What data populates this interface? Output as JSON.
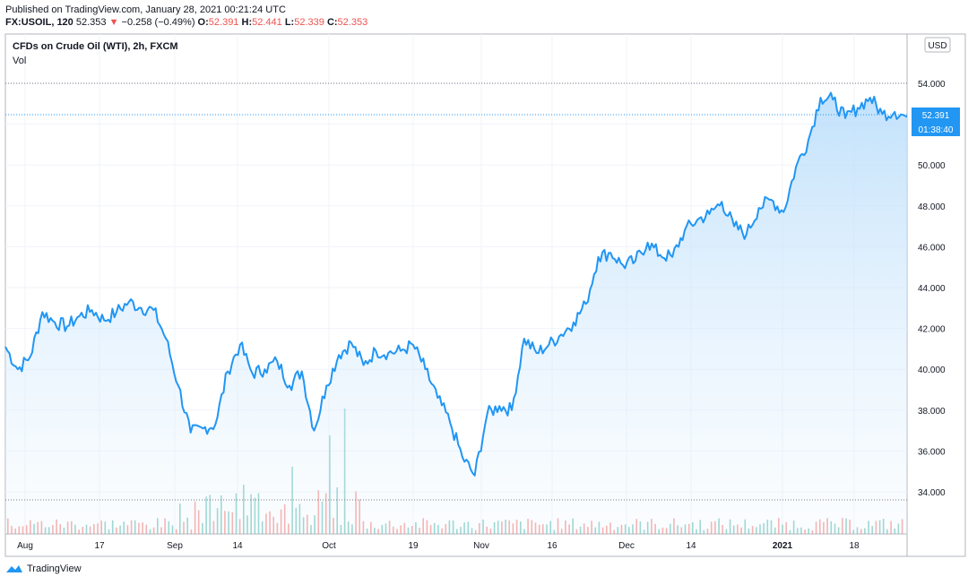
{
  "header": {
    "published": "Published on TradingView.com, January 28, 2021 00:21:24 UTC",
    "symbol": "FX:USOIL, 120",
    "last": "52.353",
    "change": "−0.258 (−0.49%)",
    "o_label": "O:",
    "o_value": "52.391",
    "h_label": "H:",
    "h_value": "52.441",
    "l_label": "L:",
    "l_value": "52.339",
    "c_label": "C:",
    "c_value": "52.353"
  },
  "legend": {
    "title": "CFDs on Crude Oil (WTI), 2h, FXCM",
    "vol": "Vol"
  },
  "currency_badge": "USD",
  "price_badge": {
    "value": "52.391",
    "countdown": "01:38:40"
  },
  "brand": "TradingView",
  "colors": {
    "line": "#2196f3",
    "fill_top": "#bbdefb",
    "vol_up": "#26a69a",
    "vol_down": "#ef5350",
    "grid": "#f0f3fa",
    "badge": "#2196f3"
  },
  "chart_data": {
    "type": "area",
    "x_ticks": [
      "Aug",
      "17",
      "Sep",
      "14",
      "Oct",
      "19",
      "Nov",
      "16",
      "Dec",
      "14",
      "2021",
      "18"
    ],
    "y_ticks": [
      "34.000",
      "36.000",
      "38.000",
      "40.000",
      "42.000",
      "44.000",
      "46.000",
      "48.000",
      "50.000",
      "52.000",
      "54.000"
    ],
    "ylim": [
      33.5,
      56.0
    ],
    "x": [
      "Aug 3",
      "Aug 5",
      "Aug 7",
      "Aug 10",
      "Aug 12",
      "Aug 14",
      "Aug 17",
      "Aug 19",
      "Aug 21",
      "Aug 24",
      "Aug 26",
      "Aug 28",
      "Sep 1",
      "Sep 3",
      "Sep 7",
      "Sep 9",
      "Sep 11",
      "Sep 14",
      "Sep 16",
      "Sep 18",
      "Sep 21",
      "Sep 23",
      "Sep 25",
      "Sep 28",
      "Sep 30",
      "Oct 2",
      "Oct 5",
      "Oct 7",
      "Oct 9",
      "Oct 12",
      "Oct 14",
      "Oct 16",
      "Oct 19",
      "Oct 21",
      "Oct 23",
      "Oct 26",
      "Oct 28",
      "Oct 30",
      "Nov 2",
      "Nov 4",
      "Nov 6",
      "Nov 9",
      "Nov 11",
      "Nov 13",
      "Nov 16",
      "Nov 18",
      "Nov 20",
      "Nov 23",
      "Nov 25",
      "Nov 27",
      "Nov 30",
      "Dec 2",
      "Dec 4",
      "Dec 7",
      "Dec 9",
      "Dec 11",
      "Dec 14",
      "Dec 16",
      "Dec 18",
      "Dec 21",
      "Dec 23",
      "Dec 28",
      "Dec 30",
      "Jan 4",
      "Jan 6",
      "Jan 8",
      "Jan 11",
      "Jan 13",
      "Jan 15",
      "Jan 18",
      "Jan 20",
      "Jan 22",
      "Jan 25",
      "Jan 27"
    ],
    "close": [
      41.1,
      40.0,
      40.6,
      42.8,
      42.3,
      42.1,
      42.6,
      42.9,
      42.4,
      42.8,
      43.3,
      43.0,
      42.9,
      41.5,
      39.2,
      36.9,
      37.1,
      37.3,
      39.9,
      41.2,
      39.8,
      40.0,
      40.4,
      39.2,
      39.9,
      37.0,
      39.2,
      40.7,
      41.3,
      40.2,
      40.9,
      40.8,
      40.9,
      41.2,
      40.0,
      38.6,
      37.4,
      35.7,
      34.8,
      37.8,
      38.2,
      38.0,
      41.5,
      40.8,
      41.2,
      41.7,
      42.3,
      43.2,
      45.5,
      45.7,
      45.1,
      45.3,
      46.2,
      45.6,
      45.5,
      46.8,
      47.3,
      47.6,
      48.2,
      47.0,
      46.6,
      47.9,
      48.3,
      47.7,
      49.9,
      51.2,
      53.3,
      53.2,
      52.3,
      52.8,
      53.3,
      52.5,
      52.6,
      52.353
    ],
    "volume_note": "Vol panel shown without numeric scale"
  }
}
